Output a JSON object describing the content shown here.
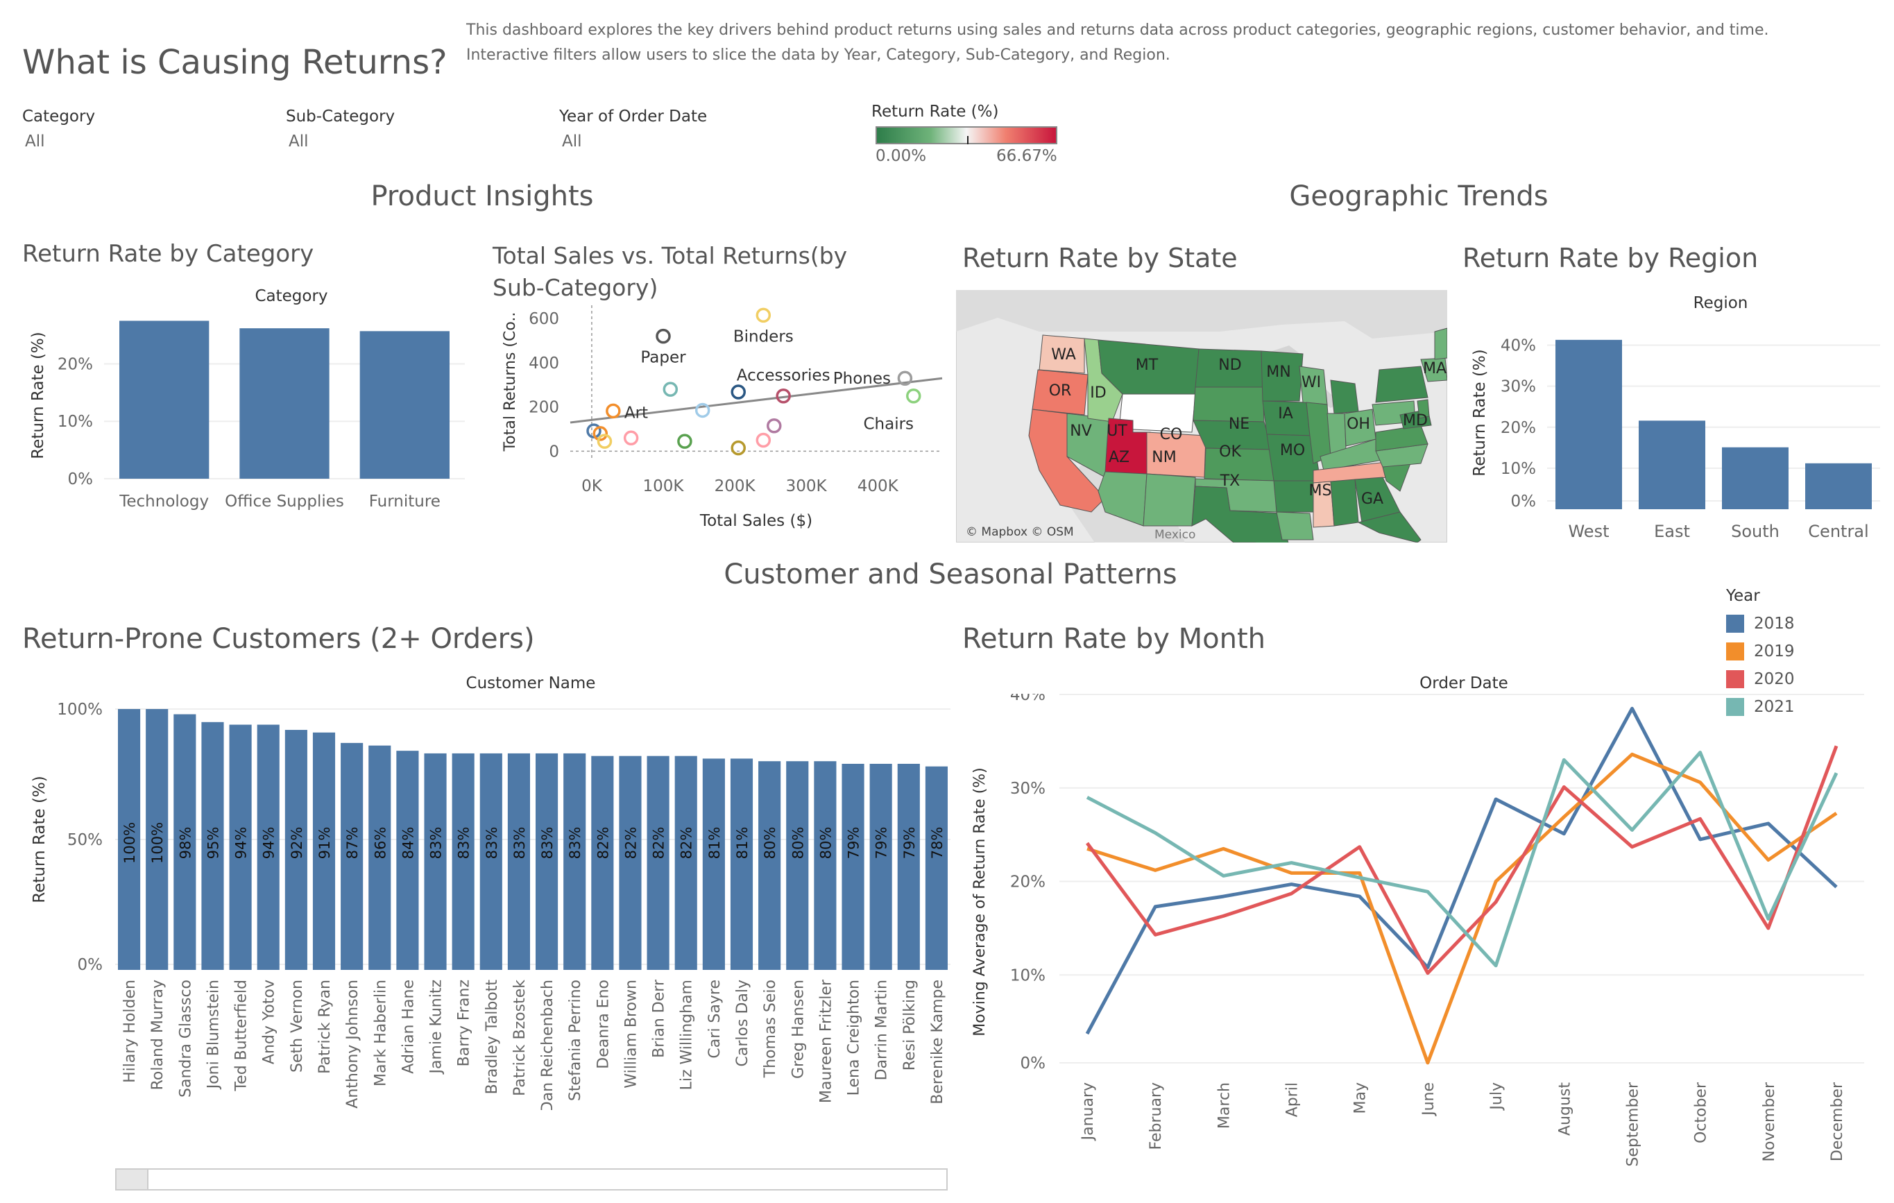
{
  "header": {
    "title": "What is Causing Returns?",
    "description": "This dashboard explores the key drivers behind product returns using sales and returns data across product categories, geographic regions, customer behavior, and time. Interactive filters allow users to slice the data by Year, Category,  Sub-Category, and Region."
  },
  "filters": [
    {
      "label": "Category",
      "value": "All"
    },
    {
      "label": "Sub-Category",
      "value": "All"
    },
    {
      "label": "Year of Order Date",
      "value": "All"
    }
  ],
  "color_legend": {
    "title": "Return Rate (%)",
    "min": "0.00%",
    "max": "66.67%",
    "low_color": "#2e7d4a",
    "mid_color": "#f5f5f5",
    "high_color": "#c8163c"
  },
  "sections": {
    "product": "Product Insights",
    "geo": "Geographic Trends",
    "customer": "Customer and Seasonal Patterns"
  },
  "charts": {
    "category": {
      "title": "Return Rate by Category",
      "header": "Category"
    },
    "scatter": {
      "title": "Total Sales vs. Total Returns(by Sub-Category)"
    },
    "state": {
      "title": "Return Rate by State",
      "attribution": "© Mapbox © OSM",
      "mexico_label": "Mexico"
    },
    "region": {
      "title": "Return Rate by Region",
      "header": "Region"
    },
    "customers": {
      "title": "Return-Prone Customers (2+ Orders)",
      "header": "Customer Name"
    },
    "month": {
      "title": "Return Rate by Month",
      "header": "Order Date"
    }
  },
  "year_legend": {
    "title": "Year",
    "items": [
      {
        "label": "2018",
        "color": "#4e79a7"
      },
      {
        "label": "2019",
        "color": "#f28e2b"
      },
      {
        "label": "2020",
        "color": "#e15759"
      },
      {
        "label": "2021",
        "color": "#76b7b2"
      }
    ]
  },
  "map_labels": [
    "WA",
    "MT",
    "ND",
    "MN",
    "OR",
    "ID",
    "WI",
    "MA",
    "NE",
    "IA",
    "OH",
    "MD",
    "NV",
    "UT",
    "CO",
    "MO",
    "OK",
    "AZ",
    "NM",
    "TX",
    "MS",
    "GA"
  ],
  "chart_data": [
    {
      "type": "bar",
      "title": "Return Rate by Category",
      "header": "Category",
      "ylabel": "Return Rate (%)",
      "categories": [
        "Technology",
        "Office Supplies",
        "Furniture"
      ],
      "values": [
        27.5,
        26.2,
        25.7
      ],
      "ylim": [
        0,
        29
      ],
      "yticks": [
        "0%",
        "10%",
        "20%"
      ],
      "color": "#4e79a7"
    },
    {
      "type": "scatter",
      "title": "Total Sales vs. Total Returns(by Sub-Category)",
      "xlabel": "Total Sales ($)",
      "ylabel": "Total Returns (Co..",
      "xticks": [
        "0K",
        "100K",
        "200K",
        "300K",
        "400K"
      ],
      "yticks": [
        "0",
        "200",
        "400",
        "600"
      ],
      "xlim": [
        -30000,
        490000
      ],
      "ylim": [
        -30000,
        660
      ],
      "points": [
        {
          "x": 3000,
          "y": 92,
          "color": "#4e79a7",
          "label": ""
        },
        {
          "x": 12000,
          "y": 80,
          "color": "#f28e2b",
          "label": ""
        },
        {
          "x": 18000,
          "y": 45,
          "color": "#f1ce63",
          "label": ""
        },
        {
          "x": 30000,
          "y": 182,
          "color": "#f28e2b",
          "label": "Art"
        },
        {
          "x": 55000,
          "y": 60,
          "color": "#ff9da7",
          "label": ""
        },
        {
          "x": 100000,
          "y": 520,
          "color": "#555555",
          "label": "Paper"
        },
        {
          "x": 110000,
          "y": 280,
          "color": "#76b7b2",
          "label": ""
        },
        {
          "x": 130000,
          "y": 45,
          "color": "#59a14f",
          "label": ""
        },
        {
          "x": 155000,
          "y": 185,
          "color": "#a0cbe8",
          "label": ""
        },
        {
          "x": 205000,
          "y": 15,
          "color": "#b6992d",
          "label": ""
        },
        {
          "x": 205000,
          "y": 268,
          "color": "#2a5783",
          "label": ""
        },
        {
          "x": 240000,
          "y": 615,
          "color": "#f1ce63",
          "label": "Binders"
        },
        {
          "x": 240000,
          "y": 50,
          "color": "#ff9da7",
          "label": ""
        },
        {
          "x": 255000,
          "y": 115,
          "color": "#b07aa1",
          "label": ""
        },
        {
          "x": 268000,
          "y": 250,
          "color": "#b6506a",
          "label": "Accessories"
        },
        {
          "x": 438000,
          "y": 330,
          "color": "#9d9d9d",
          "label": "Phones"
        },
        {
          "x": 450000,
          "y": 250,
          "color": "#8cd17d",
          "label": "Chairs"
        }
      ],
      "trend": [
        {
          "x": -30000,
          "y": 130
        },
        {
          "x": 490000,
          "y": 330
        }
      ]
    },
    {
      "type": "bar",
      "title": "Return Rate by Region",
      "header": "Region",
      "ylabel": "Return Rate (%)",
      "categories": [
        "West",
        "East",
        "South",
        "Central"
      ],
      "values": [
        41.3,
        21.6,
        15.1,
        11.2
      ],
      "ylim": [
        0,
        45
      ],
      "yticks": [
        "0%",
        "10%",
        "20%",
        "30%",
        "40%"
      ],
      "color": "#4e79a7"
    },
    {
      "type": "bar",
      "title": "Return-Prone Customers (2+ Orders)",
      "header": "Customer Name",
      "ylabel": "Return Rate (%)",
      "categories": [
        "Hilary Holden",
        "Roland Murray",
        "Sandra Glassco",
        "Joni Blumstein",
        "Ted Butterfield",
        "Andy Yotov",
        "Seth Vernon",
        "Patrick Ryan",
        "Anthony Johnson",
        "Mark Haberlin",
        "Adrian Hane",
        "Jamie Kunitz",
        "Barry Franz",
        "Bradley Talbott",
        "Patrick Bzostek",
        "Dan Reichenbach",
        "Stefania Perrino",
        "Deanra Eno",
        "William Brown",
        "Brian Derr",
        "Liz Willingham",
        "Cari Sayre",
        "Carlos Daly",
        "Thomas Seio",
        "Greg Hansen",
        "Maureen Fritzler",
        "Lena Creighton",
        "Darrin Martin",
        "Resi Pölking",
        "Berenike Kampe"
      ],
      "values": [
        100,
        100,
        98,
        95,
        94,
        94,
        92,
        91,
        87,
        86,
        84,
        83,
        83,
        83,
        83,
        83,
        83,
        82,
        82,
        82,
        82,
        81,
        81,
        80,
        80,
        80,
        79,
        79,
        79,
        78
      ],
      "value_labels": [
        "100%",
        "100%",
        "98%",
        "95%",
        "94%",
        "94%",
        "92%",
        "91%",
        "87%",
        "86%",
        "84%",
        "83%",
        "83%",
        "83%",
        "83%",
        "83%",
        "83%",
        "82%",
        "82%",
        "82%",
        "82%",
        "81%",
        "81%",
        "80%",
        "80%",
        "80%",
        "79%",
        "79%",
        "79%",
        "78%"
      ],
      "ylim": [
        0,
        100
      ],
      "yticks": [
        "0%",
        "50%",
        "100%"
      ],
      "color": "#4e79a7"
    },
    {
      "type": "line",
      "title": "Return Rate by Month",
      "header": "Order Date",
      "ylabel": "Moving Average of Return Rate (%)",
      "categories": [
        "January",
        "February",
        "March",
        "April",
        "May",
        "June",
        "July",
        "August",
        "September",
        "October",
        "November",
        "December"
      ],
      "yticks": [
        "0%",
        "10%",
        "20%",
        "30%",
        "40%"
      ],
      "ylim": [
        0,
        39
      ],
      "series": [
        {
          "name": "2018",
          "color": "#4e79a7",
          "values": [
            3.7,
            17.3,
            18.4,
            19.7,
            18.4,
            10.8,
            28.8,
            25.1,
            38.5,
            24.5,
            26.2,
            19.4
          ]
        },
        {
          "name": "2019",
          "color": "#f28e2b",
          "values": [
            23.5,
            21.2,
            23.5,
            20.9,
            20.9,
            0.6,
            20.0,
            26.9,
            33.6,
            30.6,
            22.3,
            27.3
          ]
        },
        {
          "name": "2020",
          "color": "#e15759",
          "values": [
            24.1,
            14.3,
            16.3,
            18.7,
            23.7,
            10.2,
            17.8,
            30.1,
            23.7,
            26.7,
            15.0,
            34.5
          ]
        },
        {
          "name": "2021",
          "color": "#76b7b2",
          "values": [
            29.0,
            25.2,
            20.6,
            22.0,
            20.4,
            18.9,
            11.0,
            33.0,
            25.5,
            33.8,
            16.0,
            31.6
          ]
        }
      ]
    }
  ]
}
